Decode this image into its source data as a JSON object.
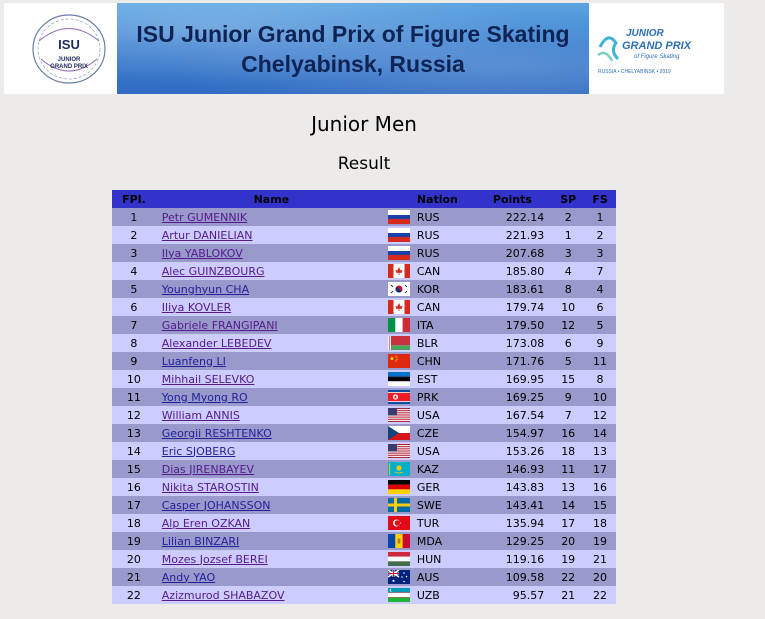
{
  "banner": {
    "title_line1": "ISU Junior Grand Prix of Figure Skating",
    "title_line2": "Chelyabinsk, Russia",
    "left_logo_text": [
      "ISU",
      "JUNIOR",
      "GRAND PRIX"
    ],
    "right_logo_text": [
      "JUNIOR",
      "GRAND PRIX",
      "of Figure Skating",
      "RUSSIA • CHELYABINSK • 2019"
    ]
  },
  "event": "Junior Men",
  "subtitle": "Result",
  "table": {
    "headers": {
      "fpl": "FPl.",
      "name": "Name",
      "nation": "Nation",
      "points": "Points",
      "sp": "SP",
      "fs": "FS"
    },
    "rows": [
      {
        "fpl": "1",
        "name": "Petr GUMENNIK",
        "visited": true,
        "flag": "RUS",
        "nation": "RUS",
        "points": "222.14",
        "sp": "2",
        "fs": "1"
      },
      {
        "fpl": "2",
        "name": "Artur DANIELIAN",
        "visited": true,
        "flag": "RUS",
        "nation": "RUS",
        "points": "221.93",
        "sp": "1",
        "fs": "2"
      },
      {
        "fpl": "3",
        "name": "Ilya YABLOKOV",
        "visited": true,
        "flag": "RUS",
        "nation": "RUS",
        "points": "207.68",
        "sp": "3",
        "fs": "3"
      },
      {
        "fpl": "4",
        "name": "Alec GUINZBOURG",
        "visited": true,
        "flag": "CAN",
        "nation": "CAN",
        "points": "185.80",
        "sp": "4",
        "fs": "7"
      },
      {
        "fpl": "5",
        "name": "Younghyun CHA",
        "visited": false,
        "flag": "KOR",
        "nation": "KOR",
        "points": "183.61",
        "sp": "8",
        "fs": "4"
      },
      {
        "fpl": "6",
        "name": "Iliya KOVLER",
        "visited": true,
        "flag": "CAN",
        "nation": "CAN",
        "points": "179.74",
        "sp": "10",
        "fs": "6"
      },
      {
        "fpl": "7",
        "name": "Gabriele FRANGIPANI",
        "visited": true,
        "flag": "ITA",
        "nation": "ITA",
        "points": "179.50",
        "sp": "12",
        "fs": "5"
      },
      {
        "fpl": "8",
        "name": "Alexander LEBEDEV",
        "visited": true,
        "flag": "BLR",
        "nation": "BLR",
        "points": "173.08",
        "sp": "6",
        "fs": "9"
      },
      {
        "fpl": "9",
        "name": "Luanfeng LI",
        "visited": false,
        "flag": "CHN",
        "nation": "CHN",
        "points": "171.76",
        "sp": "5",
        "fs": "11"
      },
      {
        "fpl": "10",
        "name": "Mihhail SELEVKO",
        "visited": true,
        "flag": "EST",
        "nation": "EST",
        "points": "169.95",
        "sp": "15",
        "fs": "8"
      },
      {
        "fpl": "11",
        "name": "Yong Myong RO",
        "visited": false,
        "flag": "PRK",
        "nation": "PRK",
        "points": "169.25",
        "sp": "9",
        "fs": "10"
      },
      {
        "fpl": "12",
        "name": "William ANNIS",
        "visited": true,
        "flag": "USA",
        "nation": "USA",
        "points": "167.54",
        "sp": "7",
        "fs": "12"
      },
      {
        "fpl": "13",
        "name": "Georgii RESHTENKO",
        "visited": false,
        "flag": "CZE",
        "nation": "CZE",
        "points": "154.97",
        "sp": "16",
        "fs": "14"
      },
      {
        "fpl": "14",
        "name": "Eric SJOBERG",
        "visited": false,
        "flag": "USA",
        "nation": "USA",
        "points": "153.26",
        "sp": "18",
        "fs": "13"
      },
      {
        "fpl": "15",
        "name": "Dias JIRENBAYEV",
        "visited": true,
        "flag": "KAZ",
        "nation": "KAZ",
        "points": "146.93",
        "sp": "11",
        "fs": "17"
      },
      {
        "fpl": "16",
        "name": "Nikita STAROSTIN",
        "visited": true,
        "flag": "GER",
        "nation": "GER",
        "points": "143.83",
        "sp": "13",
        "fs": "16"
      },
      {
        "fpl": "17",
        "name": "Casper JOHANSSON",
        "visited": false,
        "flag": "SWE",
        "nation": "SWE",
        "points": "143.41",
        "sp": "14",
        "fs": "15"
      },
      {
        "fpl": "18",
        "name": "Alp Eren OZKAN",
        "visited": true,
        "flag": "TUR",
        "nation": "TUR",
        "points": "135.94",
        "sp": "17",
        "fs": "18"
      },
      {
        "fpl": "19",
        "name": "Lilian BINZARI",
        "visited": false,
        "flag": "MDA",
        "nation": "MDA",
        "points": "129.25",
        "sp": "20",
        "fs": "19"
      },
      {
        "fpl": "20",
        "name": "Mozes Jozsef BEREI",
        "visited": true,
        "flag": "HUN",
        "nation": "HUN",
        "points": "119.16",
        "sp": "19",
        "fs": "21"
      },
      {
        "fpl": "21",
        "name": "Andy YAO",
        "visited": false,
        "flag": "AUS",
        "nation": "AUS",
        "points": "109.58",
        "sp": "22",
        "fs": "20"
      },
      {
        "fpl": "22",
        "name": "Azizmurod SHABAZOV",
        "visited": true,
        "flag": "UZB",
        "nation": "UZB",
        "points": "95.57",
        "sp": "21",
        "fs": "22"
      }
    ]
  },
  "colors": {
    "header_bg": "#3333cc",
    "row_odd": "#9999cc",
    "row_even": "#ccccff",
    "link": "#22229a",
    "link_visited": "#551a8b"
  }
}
